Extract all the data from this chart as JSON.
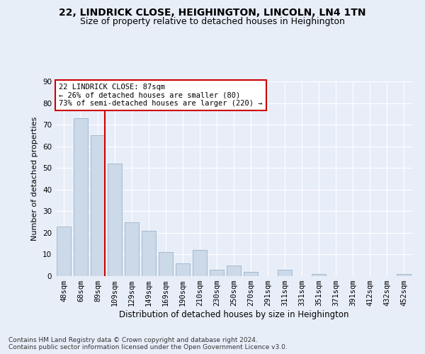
{
  "title1": "22, LINDRICK CLOSE, HEIGHINGTON, LINCOLN, LN4 1TN",
  "title2": "Size of property relative to detached houses in Heighington",
  "xlabel": "Distribution of detached houses by size in Heighington",
  "ylabel": "Number of detached properties",
  "categories": [
    "48sqm",
    "68sqm",
    "89sqm",
    "109sqm",
    "129sqm",
    "149sqm",
    "169sqm",
    "190sqm",
    "210sqm",
    "230sqm",
    "250sqm",
    "270sqm",
    "291sqm",
    "311sqm",
    "331sqm",
    "351sqm",
    "371sqm",
    "391sqm",
    "412sqm",
    "432sqm",
    "452sqm"
  ],
  "values": [
    23,
    73,
    65,
    52,
    25,
    21,
    11,
    6,
    12,
    3,
    5,
    2,
    0,
    3,
    0,
    1,
    0,
    0,
    0,
    0,
    1
  ],
  "bar_color": "#ccd9e8",
  "bar_edge_color": "#9ab4cc",
  "vline_index": 2,
  "vline_color": "#cc0000",
  "annotation_text": "22 LINDRICK CLOSE: 87sqm\n← 26% of detached houses are smaller (80)\n73% of semi-detached houses are larger (220) →",
  "annotation_box_color": "#ffffff",
  "annotation_box_edge_color": "#cc0000",
  "ylim": [
    0,
    90
  ],
  "yticks": [
    0,
    10,
    20,
    30,
    40,
    50,
    60,
    70,
    80,
    90
  ],
  "background_color": "#e8eef8",
  "plot_bg_color": "#e8eef8",
  "grid_color": "#ffffff",
  "footer": "Contains HM Land Registry data © Crown copyright and database right 2024.\nContains public sector information licensed under the Open Government Licence v3.0.",
  "title1_fontsize": 10,
  "title2_fontsize": 9,
  "xlabel_fontsize": 8.5,
  "ylabel_fontsize": 8,
  "tick_fontsize": 7.5,
  "footer_fontsize": 6.5
}
